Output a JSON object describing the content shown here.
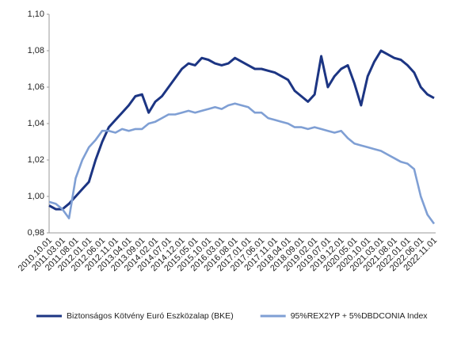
{
  "chart_data": {
    "type": "line",
    "categories": [
      "2010.10.01",
      null,
      "2011.03.01",
      null,
      "2011.08.01",
      null,
      "2012.01.01",
      null,
      "2012.06.01",
      null,
      "2012.11.01",
      null,
      "2013.04.01",
      null,
      "2013.09.01",
      null,
      "2014.02.01",
      null,
      "2014.07.01",
      null,
      "2014.12.01",
      null,
      "2015.05.01",
      null,
      "2015.10.01",
      null,
      "2016.03.01",
      null,
      "2016.08.01",
      null,
      "2017.01.01",
      null,
      "2017.06.01",
      null,
      "2017.11.01",
      null,
      "2018.04.01",
      null,
      "2018.09.01",
      null,
      "2019.02.01",
      null,
      "2019.07.01",
      null,
      "2019.12.01",
      null,
      "2020.05.01",
      null,
      "2020.10.01",
      null,
      "2021.03.01",
      null,
      "2021.08.01",
      null,
      "2022.01.01",
      null,
      "2022.06.01",
      null,
      "2022.11.01"
    ],
    "series": [
      {
        "name": "Biztonságos Kötvény Euró Eszközalap (BKE)",
        "color": "#1c3583",
        "values": [
          0.995,
          0.993,
          0.993,
          0.996,
          1.0,
          1.004,
          1.008,
          1.02,
          1.03,
          1.038,
          1.042,
          1.046,
          1.05,
          1.055,
          1.056,
          1.046,
          1.052,
          1.055,
          1.06,
          1.065,
          1.07,
          1.073,
          1.072,
          1.076,
          1.075,
          1.073,
          1.072,
          1.073,
          1.076,
          1.074,
          1.072,
          1.07,
          1.07,
          1.069,
          1.068,
          1.066,
          1.064,
          1.058,
          1.055,
          1.052,
          1.056,
          1.077,
          1.06,
          1.066,
          1.07,
          1.072,
          1.062,
          1.05,
          1.066,
          1.074,
          1.08,
          1.078,
          1.076,
          1.075,
          1.072,
          1.068,
          1.06,
          1.056,
          1.054
        ]
      },
      {
        "name": "95%REX2YP + 5%DBDCONIA Index",
        "color": "#7f9fd4",
        "values": [
          0.997,
          0.996,
          0.993,
          0.988,
          1.01,
          1.02,
          1.027,
          1.031,
          1.036,
          1.036,
          1.035,
          1.037,
          1.036,
          1.037,
          1.037,
          1.04,
          1.041,
          1.043,
          1.045,
          1.045,
          1.046,
          1.047,
          1.046,
          1.047,
          1.048,
          1.049,
          1.048,
          1.05,
          1.051,
          1.05,
          1.049,
          1.046,
          1.046,
          1.043,
          1.042,
          1.041,
          1.04,
          1.038,
          1.038,
          1.037,
          1.038,
          1.037,
          1.036,
          1.035,
          1.036,
          1.032,
          1.029,
          1.028,
          1.027,
          1.026,
          1.025,
          1.023,
          1.021,
          1.019,
          1.018,
          1.015,
          1.0,
          0.99,
          0.985
        ]
      }
    ],
    "ylim": [
      0.98,
      1.1
    ],
    "yticks": [
      {
        "value": 0.98,
        "label": "0,98"
      },
      {
        "value": 1.0,
        "label": "1,00"
      },
      {
        "value": 1.02,
        "label": "1,02"
      },
      {
        "value": 1.04,
        "label": "1,04"
      },
      {
        "value": 1.06,
        "label": "1,06"
      },
      {
        "value": 1.08,
        "label": "1,08"
      },
      {
        "value": 1.1,
        "label": "1,10"
      }
    ],
    "grid": false,
    "legend": "bottom"
  }
}
